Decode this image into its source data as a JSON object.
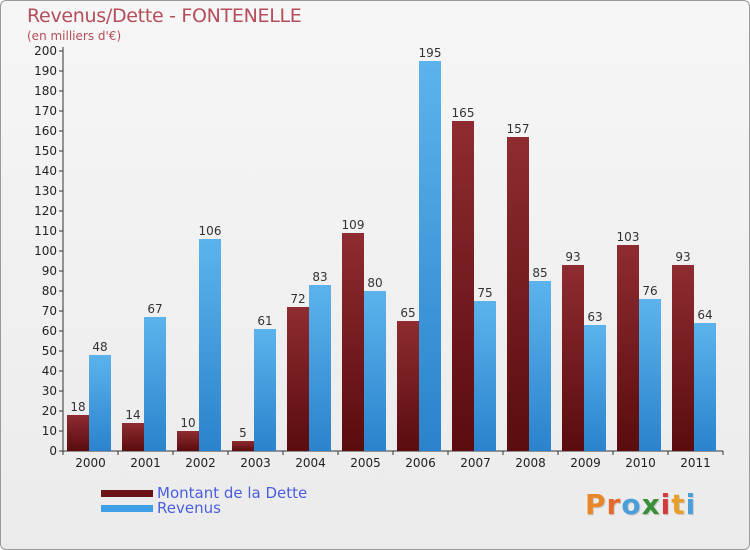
{
  "header": {
    "title": "Revenus/Dette - FONTENELLE",
    "subtitle": "(en milliers d'€)"
  },
  "colors": {
    "title": "#b54d5a",
    "dette": "#7a1e22",
    "revenus": "#4aa3e2",
    "legend_text": "#4a5ee0"
  },
  "legend": {
    "items": [
      {
        "label": "Montant de la Dette",
        "color": "#6b1416"
      },
      {
        "label": "Revenus",
        "color": "#3e9fe6"
      }
    ]
  },
  "logo": {
    "text": "Proxiti"
  },
  "chart_data": {
    "type": "bar",
    "title": "Revenus/Dette - FONTENELLE",
    "subtitle": "(en milliers d'€)",
    "xlabel": "",
    "ylabel": "",
    "ylim": [
      0,
      200
    ],
    "ytick_step": 10,
    "grid": false,
    "legend_position": "bottom-left",
    "categories": [
      "2000",
      "2001",
      "2002",
      "2003",
      "2004",
      "2005",
      "2006",
      "2007",
      "2008",
      "2009",
      "2010",
      "2011"
    ],
    "series": [
      {
        "name": "Montant de la Dette",
        "values": [
          18,
          14,
          10,
          5,
          72,
          109,
          65,
          165,
          157,
          93,
          103,
          93
        ]
      },
      {
        "name": "Revenus",
        "values": [
          48,
          67,
          106,
          61,
          83,
          80,
          195,
          75,
          85,
          63,
          76,
          64
        ]
      }
    ]
  }
}
